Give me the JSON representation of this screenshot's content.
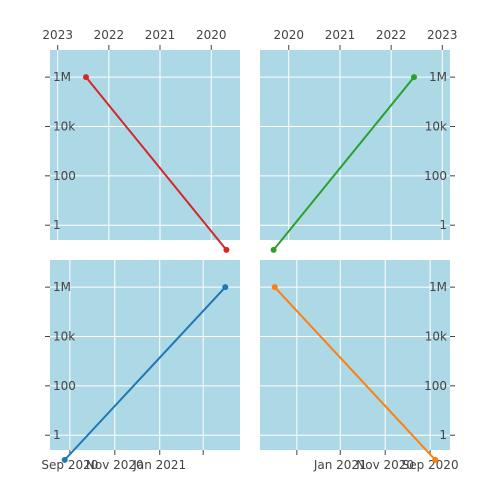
{
  "chart_data": [
    {
      "type": "line",
      "panel": "top-left",
      "x_axis": {
        "type": "date",
        "side": "top",
        "reversed": true,
        "range": [
          "2023-02-25",
          "2019-06-10"
        ],
        "ticks": [
          "2023",
          "2022",
          "2021",
          "2020"
        ]
      },
      "y_axis": {
        "type": "log",
        "side": "left",
        "range_log10": [
          -0.6,
          7.1
        ],
        "ticks": [
          "1",
          "100",
          "10k",
          "1M"
        ]
      },
      "series": [
        {
          "color": "#d62728",
          "x": [
            "2022-06-13",
            "2019-09-15"
          ],
          "y": [
            1000000,
            0.1
          ]
        }
      ]
    },
    {
      "type": "line",
      "panel": "top-right",
      "x_axis": {
        "type": "date",
        "side": "top",
        "reversed": false,
        "range": [
          "2019-06-10",
          "2023-02-25"
        ],
        "ticks": [
          "2020",
          "2021",
          "2022",
          "2023"
        ]
      },
      "y_axis": {
        "type": "log",
        "side": "right",
        "range_log10": [
          -0.6,
          7.1
        ],
        "ticks": [
          "1",
          "100",
          "10k",
          "1M"
        ]
      },
      "series": [
        {
          "color": "#2ca02c",
          "x": [
            "2019-09-15",
            "2022-06-13"
          ],
          "y": [
            0.1,
            1000000
          ]
        }
      ]
    },
    {
      "type": "line",
      "panel": "bottom-left",
      "x_axis": {
        "type": "date",
        "side": "bottom",
        "reversed": false,
        "range": [
          "2020-08-05",
          "2021-04-20"
        ],
        "ticks": [
          "Sep 2020",
          "Nov 2020",
          "Jan 2021",
          ""
        ]
      },
      "y_axis": {
        "type": "log",
        "side": "left",
        "range_log10": [
          -0.6,
          7.1
        ],
        "ticks": [
          "1",
          "100",
          "10k",
          "1M"
        ]
      },
      "series": [
        {
          "color": "#1f77b4",
          "x": [
            "2020-08-25",
            "2021-03-31"
          ],
          "y": [
            0.1,
            1000000
          ]
        }
      ]
    },
    {
      "type": "line",
      "panel": "bottom-right",
      "x_axis": {
        "type": "date",
        "side": "bottom",
        "reversed": true,
        "range": [
          "2021-04-20",
          "2020-08-05"
        ],
        "ticks": [
          "",
          "Jan 2021",
          "Nov 2020",
          "Sep 2020"
        ]
      },
      "y_axis": {
        "type": "log",
        "side": "right",
        "range_log10": [
          -0.6,
          7.1
        ],
        "ticks": [
          "1",
          "100",
          "10k",
          "1M"
        ]
      },
      "series": [
        {
          "color": "#ff7f0e",
          "x": [
            "2021-03-31",
            "2020-08-25"
          ],
          "y": [
            1000000,
            0.1
          ]
        }
      ]
    }
  ],
  "colors": {
    "plot_bg": "#add8e6",
    "grid": "#ffffff",
    "axis_text": "#444444"
  }
}
